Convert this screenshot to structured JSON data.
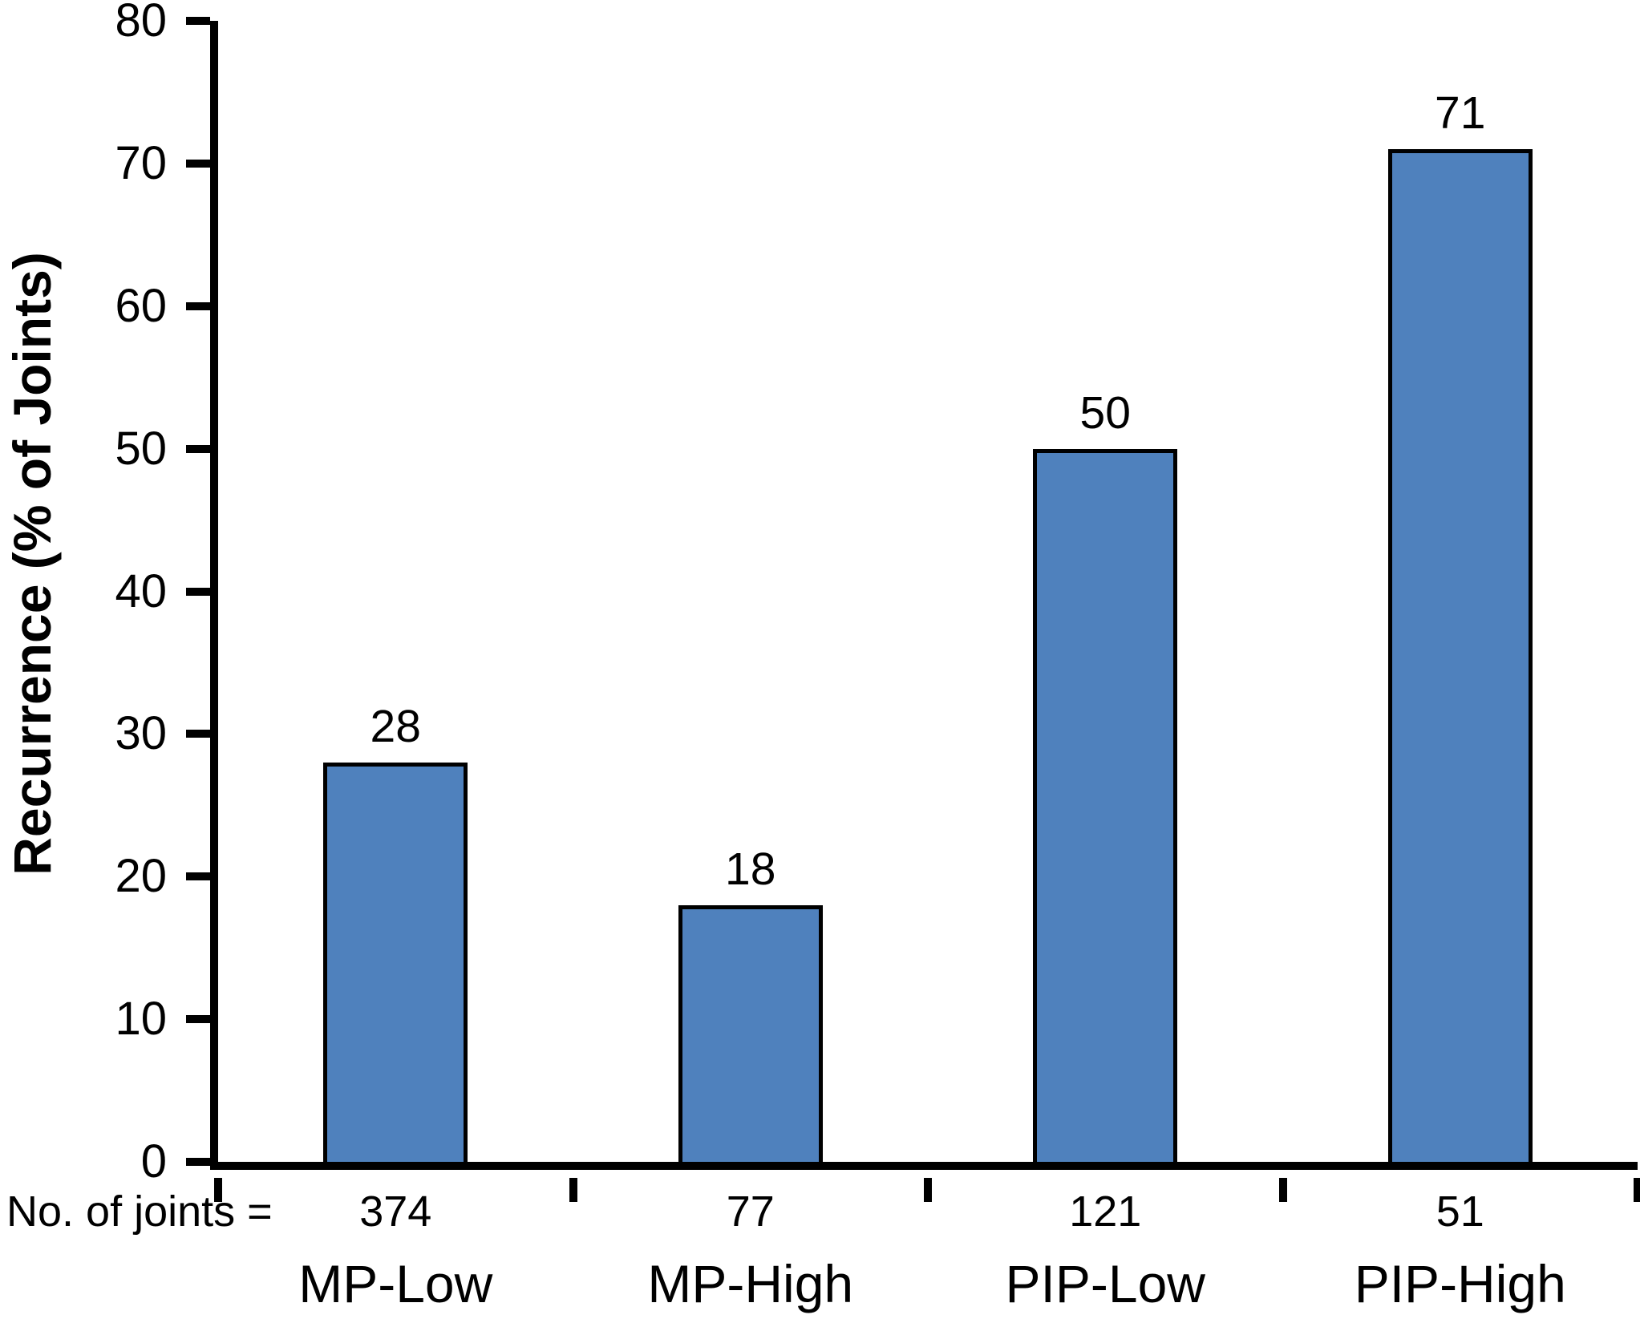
{
  "chart_data": {
    "type": "bar",
    "title": "",
    "ylabel": "Recurrence (% of Joints)",
    "xlabel": "",
    "categories": [
      "MP-Low",
      "MP-High",
      "PIP-Low",
      "PIP-High"
    ],
    "values": [
      28,
      18,
      50,
      71
    ],
    "value_labels": [
      "28",
      "18",
      "50",
      "71"
    ],
    "counts_row_label": "No. of joints =",
    "counts": [
      "374",
      "77",
      "121",
      "51"
    ],
    "ylim": [
      0,
      80
    ],
    "yticks": [
      0,
      10,
      20,
      30,
      40,
      50,
      60,
      70,
      80
    ],
    "grid": false,
    "legend": "none",
    "colors": {
      "bar_fill": "#4F81BD",
      "bar_border": "#000000",
      "axis": "#000000",
      "text": "#000000",
      "background": "#FFFFFF"
    }
  }
}
